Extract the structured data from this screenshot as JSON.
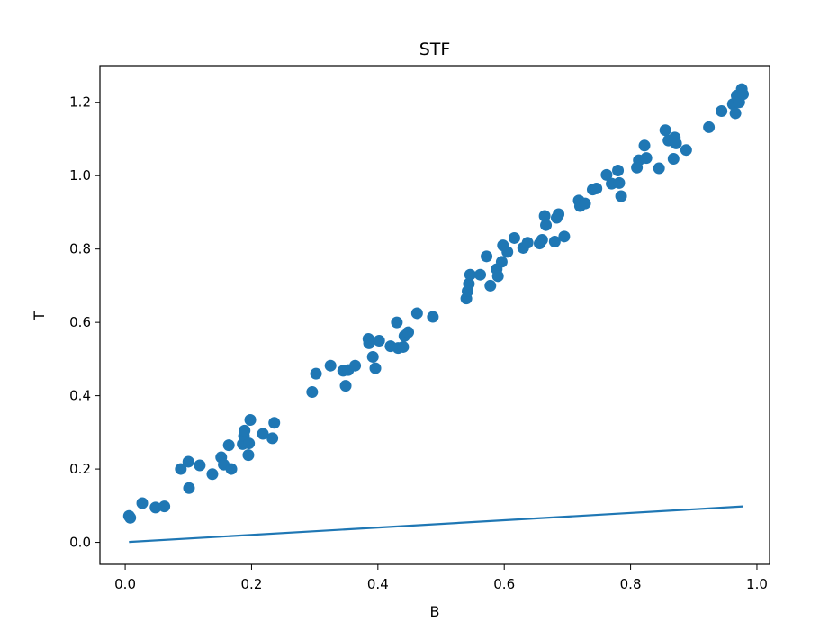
{
  "chart_data": {
    "type": "scatter",
    "title": "STF",
    "xlabel": "B",
    "ylabel": "T",
    "xlim": [
      -0.04,
      1.02
    ],
    "ylim": [
      -0.06,
      1.3
    ],
    "xticks": [
      0.0,
      0.2,
      0.4,
      0.6,
      0.8,
      1.0
    ],
    "xtick_labels": [
      "0.0",
      "0.2",
      "0.4",
      "0.6",
      "0.8",
      "1.0"
    ],
    "yticks": [
      0.0,
      0.2,
      0.4,
      0.6,
      0.8,
      1.0,
      1.2
    ],
    "ytick_labels": [
      "0.0",
      "0.2",
      "0.4",
      "0.6",
      "0.8",
      "1.0",
      "1.2"
    ],
    "grid": false,
    "colors": {
      "series": "#1f77b4"
    },
    "series": [
      {
        "kind": "scatter",
        "points": [
          [
            0.006,
            0.072
          ],
          [
            0.008,
            0.067
          ],
          [
            0.027,
            0.107
          ],
          [
            0.048,
            0.095
          ],
          [
            0.062,
            0.098
          ],
          [
            0.088,
            0.2
          ],
          [
            0.1,
            0.22
          ],
          [
            0.101,
            0.148
          ],
          [
            0.118,
            0.21
          ],
          [
            0.138,
            0.186
          ],
          [
            0.152,
            0.232
          ],
          [
            0.156,
            0.212
          ],
          [
            0.164,
            0.265
          ],
          [
            0.168,
            0.2
          ],
          [
            0.186,
            0.268
          ],
          [
            0.188,
            0.29
          ],
          [
            0.189,
            0.305
          ],
          [
            0.195,
            0.238
          ],
          [
            0.196,
            0.27
          ],
          [
            0.198,
            0.334
          ],
          [
            0.218,
            0.296
          ],
          [
            0.233,
            0.284
          ],
          [
            0.236,
            0.326
          ],
          [
            0.296,
            0.41
          ],
          [
            0.302,
            0.46
          ],
          [
            0.325,
            0.482
          ],
          [
            0.345,
            0.468
          ],
          [
            0.349,
            0.427
          ],
          [
            0.353,
            0.47
          ],
          [
            0.364,
            0.482
          ],
          [
            0.385,
            0.555
          ],
          [
            0.386,
            0.543
          ],
          [
            0.392,
            0.506
          ],
          [
            0.396,
            0.475
          ],
          [
            0.402,
            0.55
          ],
          [
            0.42,
            0.535
          ],
          [
            0.43,
            0.6
          ],
          [
            0.432,
            0.53
          ],
          [
            0.44,
            0.533
          ],
          [
            0.442,
            0.563
          ],
          [
            0.448,
            0.573
          ],
          [
            0.462,
            0.625
          ],
          [
            0.487,
            0.615
          ],
          [
            0.54,
            0.665
          ],
          [
            0.542,
            0.685
          ],
          [
            0.544,
            0.705
          ],
          [
            0.546,
            0.73
          ],
          [
            0.562,
            0.73
          ],
          [
            0.572,
            0.78
          ],
          [
            0.578,
            0.7
          ],
          [
            0.588,
            0.745
          ],
          [
            0.59,
            0.726
          ],
          [
            0.596,
            0.765
          ],
          [
            0.598,
            0.81
          ],
          [
            0.605,
            0.792
          ],
          [
            0.616,
            0.83
          ],
          [
            0.63,
            0.803
          ],
          [
            0.637,
            0.817
          ],
          [
            0.656,
            0.815
          ],
          [
            0.66,
            0.825
          ],
          [
            0.664,
            0.89
          ],
          [
            0.666,
            0.865
          ],
          [
            0.68,
            0.82
          ],
          [
            0.683,
            0.885
          ],
          [
            0.686,
            0.895
          ],
          [
            0.695,
            0.834
          ],
          [
            0.718,
            0.932
          ],
          [
            0.72,
            0.917
          ],
          [
            0.728,
            0.924
          ],
          [
            0.74,
            0.962
          ],
          [
            0.746,
            0.965
          ],
          [
            0.762,
            1.002
          ],
          [
            0.77,
            0.978
          ],
          [
            0.78,
            1.014
          ],
          [
            0.782,
            0.98
          ],
          [
            0.785,
            0.944
          ],
          [
            0.81,
            1.022
          ],
          [
            0.813,
            1.042
          ],
          [
            0.822,
            1.082
          ],
          [
            0.825,
            1.048
          ],
          [
            0.845,
            1.02
          ],
          [
            0.855,
            1.124
          ],
          [
            0.86,
            1.096
          ],
          [
            0.868,
            1.046
          ],
          [
            0.87,
            1.104
          ],
          [
            0.872,
            1.088
          ],
          [
            0.888,
            1.07
          ],
          [
            0.924,
            1.132
          ],
          [
            0.944,
            1.176
          ],
          [
            0.962,
            1.195
          ],
          [
            0.966,
            1.17
          ],
          [
            0.968,
            1.218
          ],
          [
            0.972,
            1.2
          ],
          [
            0.976,
            1.236
          ],
          [
            0.978,
            1.222
          ]
        ]
      },
      {
        "kind": "line",
        "x": [
          0.006,
          0.978
        ],
        "y": [
          0.001,
          0.098
        ]
      }
    ]
  }
}
